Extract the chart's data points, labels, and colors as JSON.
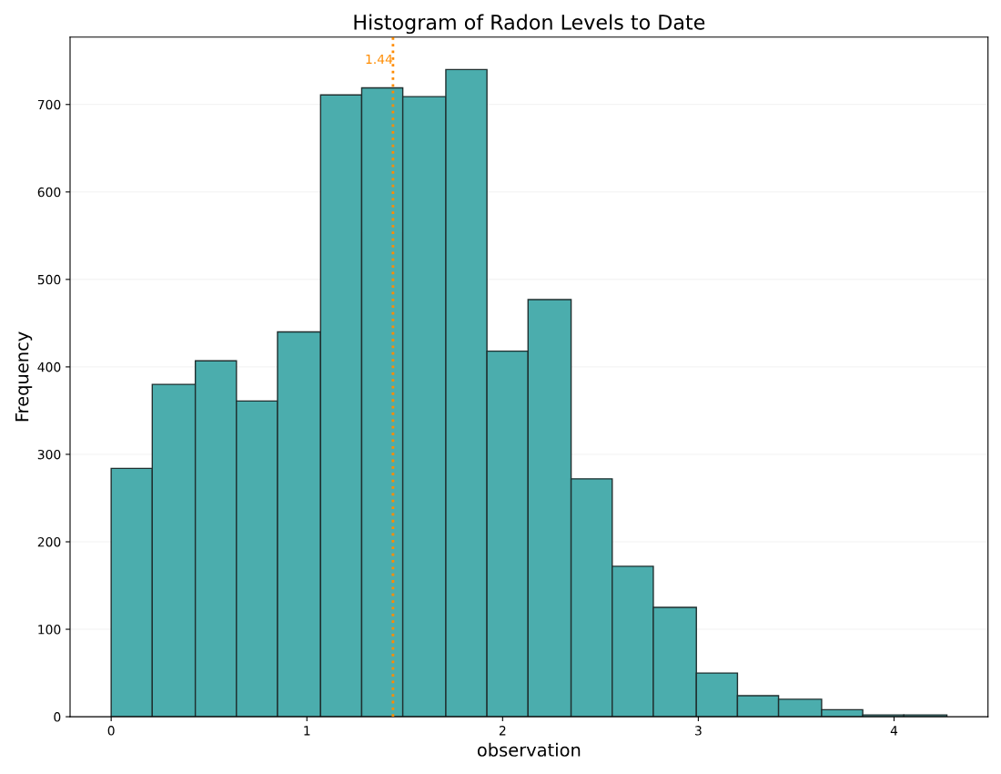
{
  "chart_data": {
    "type": "histogram",
    "title": "Histogram of Radon Levels to Date",
    "xlabel": "observation",
    "ylabel": "Frequency",
    "bins": [
      0,
      0.21,
      0.43,
      0.64,
      0.85,
      1.07,
      1.28,
      1.49,
      1.71,
      1.92,
      2.13,
      2.35,
      2.56,
      2.77,
      2.99,
      3.2,
      3.41,
      3.63,
      3.84,
      4.05,
      4.27
    ],
    "values": [
      284,
      380,
      407,
      361,
      440,
      711,
      719,
      709,
      740,
      418,
      477,
      272,
      172,
      125,
      50,
      24,
      20,
      8,
      2,
      2
    ],
    "color": "#4badad",
    "xlim": [
      -0.21,
      4.48
    ],
    "xticks": [
      0,
      1,
      2,
      3,
      4
    ],
    "ylim": [
      0,
      777
    ],
    "yticks": [
      0,
      100,
      200,
      300,
      400,
      500,
      600,
      700
    ],
    "ref_lines": [
      {
        "axis": "x",
        "value": 1.44,
        "label": "1.44",
        "color": "#ff8c00",
        "line_style": "dotted"
      }
    ],
    "grid": "y"
  }
}
